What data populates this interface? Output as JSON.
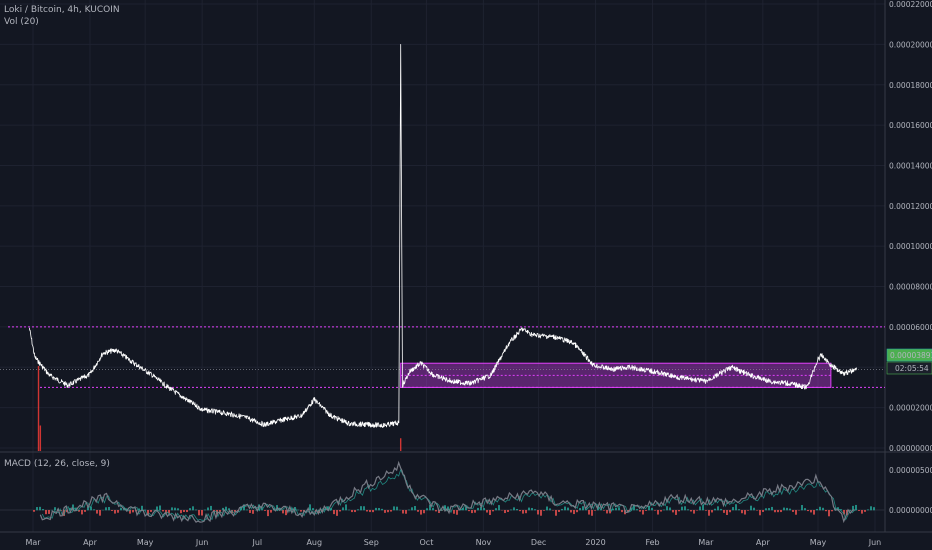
{
  "header": {
    "symbol": "Loki / Bitcoin, 4h, KUCOIN",
    "volume_indicator": "Vol (20)",
    "macd_indicator": "MACD (12, 26, close, 9)"
  },
  "price_tag": {
    "value": "0.00003891",
    "countdown": "02:05:54",
    "color": "#4caf50"
  },
  "colors": {
    "background": "#131722",
    "grid": "#1e2230",
    "price_line": "#ffffff",
    "annotation": "#e040fb",
    "volume": "#e53935",
    "macd_line": "#787b86",
    "signal_line": "#26a69a",
    "hist_pos": "#26a69a",
    "hist_neg": "#ef5350"
  },
  "chart_data": {
    "type": "line",
    "title": "Loki / Bitcoin, 4h, KUCOIN",
    "x_ticks": [
      "Mar",
      "Apr",
      "May",
      "Jun",
      "Jul",
      "Aug",
      "Sep",
      "Oct",
      "Nov",
      "Dec",
      "2020",
      "Feb",
      "Mar",
      "Apr",
      "May",
      "Jun"
    ],
    "price_ticks": [
      "0.00022000",
      "0.00020000",
      "0.00018000",
      "0.00016000",
      "0.00014000",
      "0.00012000",
      "0.00010000",
      "0.00008000",
      "0.00006000",
      "0.00004000",
      "0.00002000",
      "0.00000000"
    ],
    "ylim": [
      -2e-06,
      0.000222
    ],
    "macd_ticks": [
      "0.00000500",
      "0.00000000"
    ],
    "series": [
      {
        "type": "line",
        "x": [
          "2019-02-27",
          "2019-03-02",
          "2019-03-10",
          "2019-03-20",
          "2019-04-01",
          "2019-04-08",
          "2019-04-15",
          "2019-04-25",
          "2019-05-05",
          "2019-05-12",
          "2019-05-20",
          "2019-06-01",
          "2019-06-15",
          "2019-06-25",
          "2019-07-05",
          "2019-07-15",
          "2019-07-25",
          "2019-08-01",
          "2019-08-10",
          "2019-08-20",
          "2019-09-01",
          "2019-09-08",
          "2019-09-16",
          "2019-09-17",
          "2019-09-18",
          "2019-09-22",
          "2019-09-28",
          "2019-10-05",
          "2019-10-15",
          "2019-10-25",
          "2019-11-05",
          "2019-11-15",
          "2019-11-22",
          "2019-11-28",
          "2019-12-10",
          "2019-12-20",
          "2019-12-31",
          "2020-01-10",
          "2020-01-20",
          "2020-02-01",
          "2020-02-15",
          "2020-03-01",
          "2020-03-15",
          "2020-03-25",
          "2020-04-05",
          "2020-04-15",
          "2020-04-25",
          "2020-05-01",
          "2020-05-03",
          "2020-05-08",
          "2020-05-15",
          "2020-05-22"
        ],
        "values": [
          5.95e-05,
          4.5e-05,
          3.6e-05,
          3.1e-05,
          3.65e-05,
          4.7e-05,
          4.85e-05,
          4.2e-05,
          3.6e-05,
          3.1e-05,
          2.6e-05,
          1.9e-05,
          1.7e-05,
          1.5e-05,
          1.15e-05,
          1.4e-05,
          1.6e-05,
          2.4e-05,
          1.6e-05,
          1.2e-05,
          1.15e-05,
          1.12e-05,
          1.25e-05,
          0.0002,
          3.1e-05,
          3.8e-05,
          4.2e-05,
          3.6e-05,
          3.3e-05,
          3.2e-05,
          3.6e-05,
          5.2e-05,
          5.9e-05,
          5.6e-05,
          5.5e-05,
          5.2e-05,
          4.1e-05,
          3.9e-05,
          4e-05,
          3.8e-05,
          3.5e-05,
          3.3e-05,
          4e-05,
          3.6e-05,
          3.3e-05,
          3.2e-05,
          3e-05,
          4.4e-05,
          4.6e-05,
          4.1e-05,
          3.7e-05,
          3.891e-05
        ]
      },
      {
        "type": "volume",
        "x": [
          "2019-03-04",
          "2019-03-05",
          "2019-09-17"
        ],
        "values": [
          1,
          0.3,
          0.15
        ]
      },
      {
        "type": "macd",
        "x": [
          "2019-03-05",
          "2019-04-01",
          "2019-04-10",
          "2019-05-01",
          "2019-06-01",
          "2019-07-01",
          "2019-08-01",
          "2019-09-17",
          "2019-09-19",
          "2019-09-25",
          "2019-10-10",
          "2019-11-25",
          "2019-11-28",
          "2019-12-10",
          "2020-01-25",
          "2020-02-10",
          "2020-03-15",
          "2020-05-02",
          "2020-05-05",
          "2020-05-15",
          "2020-05-22"
        ],
        "values": [
          -1e-06,
          1e-06,
          1.5e-06,
          -5e-07,
          -1e-06,
          5e-07,
          -5e-07,
          5.5e-06,
          4e-06,
          2e-06,
          0,
          2e-06,
          2.5e-06,
          1e-06,
          0,
          1.5e-06,
          1e-06,
          4e-06,
          2.5e-06,
          -1e-06,
          5e-07
        ]
      }
    ],
    "annotations": {
      "resistance": 6e-05,
      "support": 3e-05,
      "range_top": 4.2e-05,
      "range_bottom": 3e-05,
      "range_start": "2019-09-17",
      "range_end": "2020-05-08"
    }
  }
}
